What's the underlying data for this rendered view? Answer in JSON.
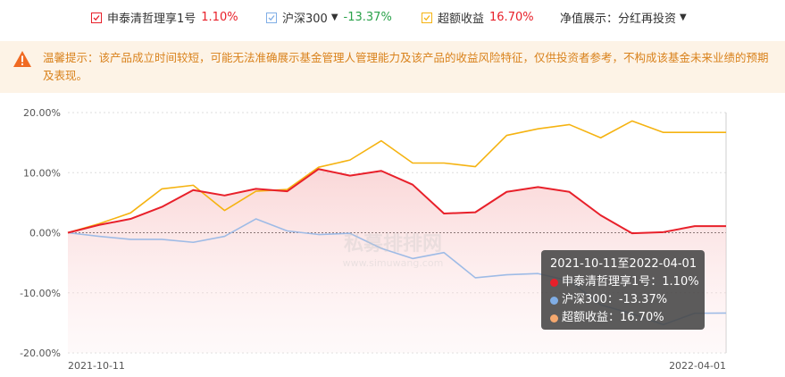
{
  "legend": {
    "items": [
      {
        "label": "申泰清哲理享1号",
        "value": "1.10%",
        "color": "#e8202a",
        "value_color": "#e8202a"
      },
      {
        "label": "沪深300",
        "value": "-13.37%",
        "color": "#80aee6",
        "value_color": "#2aa24a",
        "caret": "▼"
      },
      {
        "label": "超额收益",
        "value": "16.70%",
        "color": "#f5b311",
        "value_color": "#e8202a"
      }
    ],
    "nav_label": "净值展示：分红再投资",
    "nav_caret": "▼"
  },
  "notice": {
    "icon": "warning-triangle-icon",
    "text": "温馨提示：该产品成立时间较短，可能无法准确展示基金管理人管理能力及该产品的收益风险特征，仅供投资者参考，不构成该基金未来业绩的预期及表现。"
  },
  "watermark": {
    "main": "私募排排网",
    "sub": "www.simuwang.com"
  },
  "tooltip": {
    "title": "2021-10-11至2022-04-01",
    "rows": [
      {
        "text": "申泰清哲理享1号：1.10%",
        "color": "#e8202a"
      },
      {
        "text": "沪深300：-13.37%",
        "color": "#80aee6"
      },
      {
        "text": "超额收益：16.70%",
        "color": "#f5a86e"
      }
    ]
  },
  "chart_data": {
    "type": "line",
    "x": [
      "2021-10-11",
      "2021-10-22",
      "2021-11-05",
      "2021-11-19",
      "2021-12-03",
      "2021-12-10",
      "2021-12-17",
      "2021-12-24",
      "2021-12-31",
      "2022-01-07",
      "2022-01-14",
      "2022-01-21",
      "2022-01-28",
      "2022-02-04",
      "2022-02-11",
      "2022-02-18",
      "2022-02-25",
      "2022-03-04",
      "2022-03-11",
      "2022-03-18",
      "2022-03-25",
      "2022-04-01"
    ],
    "x_tick_labels": [
      "2021-10-11",
      "2022-04-01"
    ],
    "ylim": [
      -20,
      20
    ],
    "yticks": [
      20,
      10,
      0,
      -10,
      -20
    ],
    "ytick_labels": [
      "20.00%",
      "10.00%",
      "0.00%",
      "-10.00%",
      "-20.00%"
    ],
    "series": [
      {
        "name": "申泰清哲理享1号",
        "color": "#e8202a",
        "area": true,
        "values": [
          0.0,
          1.3,
          2.3,
          4.3,
          7.1,
          6.2,
          7.3,
          6.9,
          10.6,
          9.5,
          10.3,
          8.0,
          3.2,
          3.4,
          6.8,
          7.6,
          6.8,
          2.9,
          -0.1,
          0.1,
          1.1,
          1.1
        ]
      },
      {
        "name": "沪深300",
        "color": "#9ebbe6",
        "values": [
          0.0,
          -0.6,
          -1.1,
          -1.1,
          -1.6,
          -0.6,
          2.3,
          0.3,
          -0.3,
          -0.1,
          -2.6,
          -4.3,
          -3.3,
          -7.5,
          -7.0,
          -6.8,
          -8.0,
          -12.0,
          -13.5,
          -15.3,
          -13.4,
          -13.37
        ]
      },
      {
        "name": "超额收益",
        "color": "#f5b311",
        "values": [
          0.0,
          1.5,
          3.3,
          7.3,
          7.9,
          3.7,
          6.9,
          7.2,
          10.9,
          12.1,
          15.3,
          11.6,
          11.6,
          11.0,
          16.2,
          17.3,
          18.0,
          15.8,
          18.6,
          16.7,
          16.7,
          16.7
        ]
      }
    ]
  }
}
